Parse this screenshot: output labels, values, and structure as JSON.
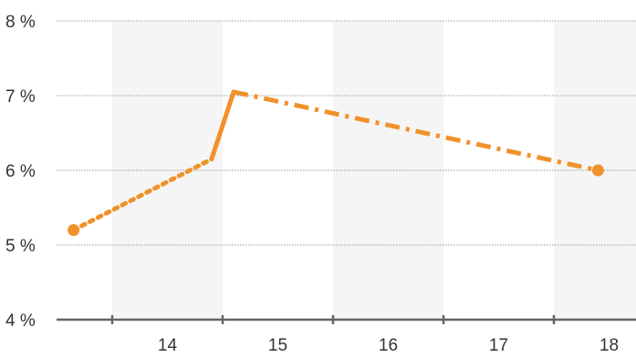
{
  "chart_data": {
    "type": "line",
    "categories": [
      "14",
      "15",
      "16",
      "17",
      "18"
    ],
    "y_ticks": [
      "4 %",
      "5 %",
      "6 %",
      "7 %",
      "8 %"
    ],
    "ylim": [
      4,
      8
    ],
    "xlim": [
      13.05,
      18.25
    ],
    "grid": true,
    "alternating_bands": true,
    "series": [
      {
        "points": [
          {
            "x": 13.15,
            "y": 5.2,
            "marker": true
          },
          {
            "x": 14.4,
            "y": 6.15,
            "marker": false
          },
          {
            "x": 14.6,
            "y": 7.05,
            "marker": false
          },
          {
            "x": 17.9,
            "y": 6.0,
            "marker": true
          }
        ],
        "segment_styles": [
          "dotted",
          "solid",
          "dashdot"
        ],
        "color": "#f0922b"
      }
    ],
    "colors": {
      "line": "#f0922b",
      "band": "#f5f5f5",
      "grid": "#9a9a9a",
      "axis": "#666666",
      "text": "#333333"
    }
  }
}
